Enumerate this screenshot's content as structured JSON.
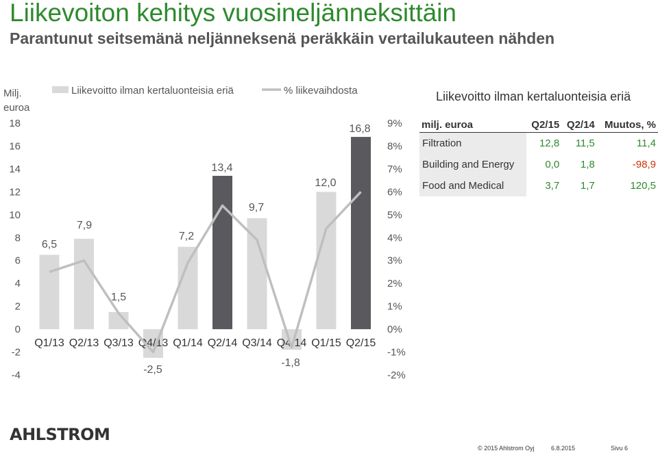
{
  "header": {
    "title": "Liikevoiton kehitys vuosineljänneksittäin",
    "subtitle": "Parantunut seitsemänä neljänneksenä peräkkäin vertailukauteen nähden"
  },
  "chart_data": {
    "type": "bar+line",
    "categories": [
      "Q1/13",
      "Q2/13",
      "Q3/13",
      "Q4/13",
      "Q1/14",
      "Q2/14",
      "Q3/14",
      "Q4/14",
      "Q1/15",
      "Q2/15"
    ],
    "series": [
      {
        "name": "Liikevoitto ilman kertaluonteisia eriä",
        "type": "bar",
        "axis": "left",
        "values": [
          6.5,
          7.9,
          1.5,
          -2.5,
          7.2,
          13.4,
          9.7,
          -1.8,
          12.0,
          16.8
        ],
        "labels": [
          "6,5",
          "7,9",
          "1,5",
          "-2,5",
          "7,2",
          "13,4",
          "9,7",
          "-1,8",
          "12,0",
          "16,8"
        ],
        "highlight": [
          false,
          false,
          false,
          false,
          false,
          true,
          false,
          false,
          false,
          true
        ],
        "color": "#d9d9d9",
        "highlight_color": "#5a5a5e"
      },
      {
        "name": "% liikevaihdosta",
        "type": "line",
        "axis": "right",
        "values": [
          2.5,
          3.0,
          0.7,
          -1.0,
          2.9,
          5.4,
          3.9,
          -0.8,
          4.4,
          6.0
        ],
        "color": "#bfbfbf"
      }
    ],
    "ylabel": "Milj.\neuroa",
    "ylim": [
      -4,
      18
    ],
    "yticks": [
      "18",
      "16",
      "14",
      "12",
      "10",
      "8",
      "6",
      "4",
      "2",
      "0",
      "-2",
      "-4"
    ],
    "y2lim": [
      -2,
      9
    ],
    "y2ticks": [
      "9%",
      "8%",
      "7%",
      "6%",
      "5%",
      "4%",
      "3%",
      "2%",
      "1%",
      "0%",
      "-1%",
      "-2%"
    ],
    "legend": "top"
  },
  "table": {
    "title": "Liikevoitto ilman kertaluonteisia eriä",
    "headers": [
      "milj. euroa",
      "Q2/15",
      "Q2/14",
      "Muutos, %"
    ],
    "rows": [
      [
        "Filtration",
        "12,8",
        "11,5",
        "11,4"
      ],
      [
        "Building and Energy",
        "0,0",
        "1,8",
        "-98,9"
      ],
      [
        "Food and Medical",
        "3,7",
        "1,7",
        "120,5"
      ]
    ],
    "colors": {
      "positive": "#2d8a2d",
      "negative": "#cc3300"
    }
  },
  "footer": {
    "logo": "AHLSTROM",
    "copyright": "© 2015 Ahlstrom Oyj",
    "date": "6.8.2015",
    "page": "Sivu 6"
  }
}
